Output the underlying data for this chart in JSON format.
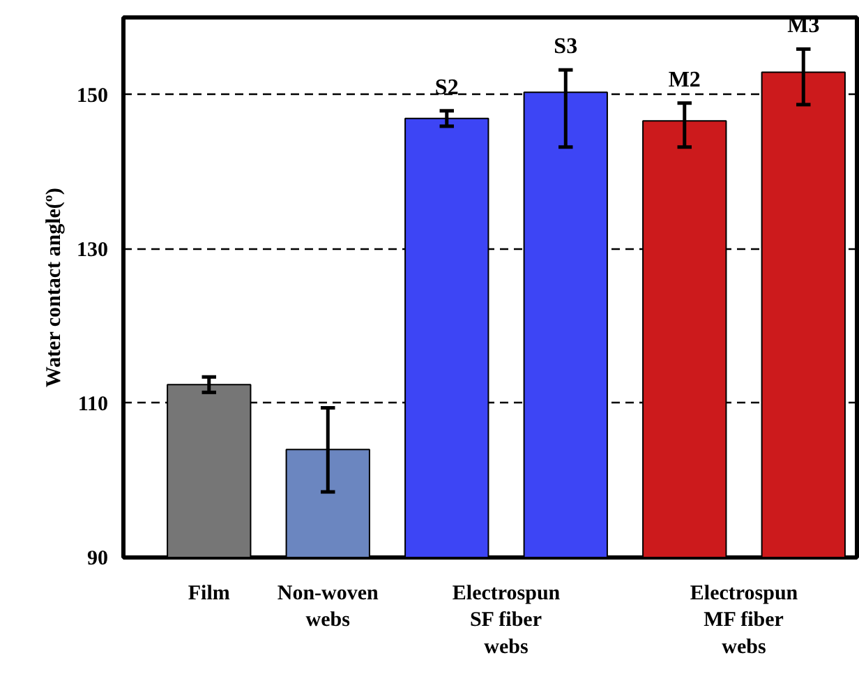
{
  "chart_data": {
    "type": "bar",
    "ylabel": "Water contact angle(º)",
    "categories": [
      "Film",
      "Non-woven webs",
      null,
      null,
      null,
      null
    ],
    "values": [
      112.4,
      104.0,
      146.9,
      150.3,
      146.6,
      152.9
    ],
    "colors": [
      "#767676",
      "#6b86c0",
      "#3d45f5",
      "#3d45f5",
      "#cc1a1c",
      "#cc1a1c"
    ],
    "errors": [
      1.0,
      [
        98.5,
        109.4
      ],
      1.0,
      [
        143.2,
        153.2
      ],
      [
        143.2,
        148.9
      ],
      [
        148.7,
        155.9
      ]
    ],
    "annotations": [
      "S2",
      "S3",
      "M2",
      "M3",
      "Electrospun SF fiber webs",
      "Electrospun MF fiber webs"
    ],
    "ylim": [
      90,
      160
    ],
    "yticks": [
      90,
      110,
      130,
      150
    ],
    "grid": "y"
  }
}
